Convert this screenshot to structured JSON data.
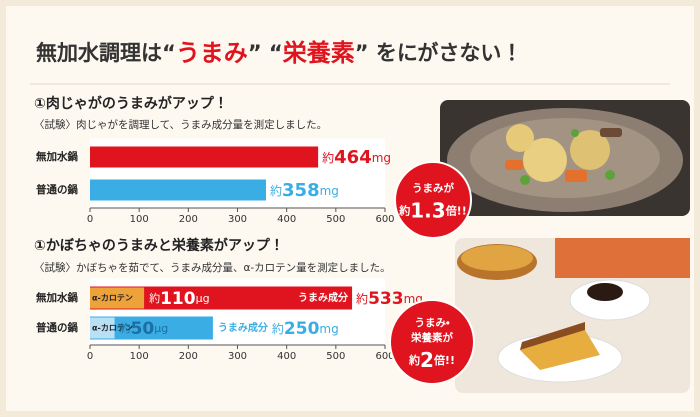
{
  "title": {
    "parts": [
      "無加水調理は“",
      "うまみ",
      "” “",
      "栄養素",
      "” をにがさない！"
    ]
  },
  "chart_data": [
    {
      "type": "bar",
      "title": "①肉じゃがのうまみがアップ！",
      "subtitle": "〈試験〉肉じゃがを調理して、うまみ成分量を測定しました。",
      "categories": [
        "無加水鍋",
        "普通の鍋"
      ],
      "values": [
        464,
        358
      ],
      "value_labels": [
        "約464mg",
        "約358mg"
      ],
      "colors": [
        "#e0141e",
        "#3aaee4"
      ],
      "xlim": [
        0,
        600
      ],
      "xticks": [
        0,
        100,
        200,
        300,
        400,
        500,
        600
      ]
    },
    {
      "type": "overlay-bar",
      "title": "①かぼちゃのうまみと栄養素がアップ！",
      "subtitle": "〈試験〉かぼちゃを茹でて、うまみ成分量、α-カロテン量を測定しました。",
      "categories": [
        "無加水鍋",
        "普通の鍋"
      ],
      "series": [
        {
          "name": "うまみ成分",
          "values": [
            533,
            250
          ],
          "value_labels": [
            "約533mg",
            "約250mg"
          ],
          "colors": [
            "#e0141e",
            "#3aaee4"
          ]
        },
        {
          "name": "α-カロテン",
          "values": [
            110,
            50
          ],
          "value_labels": [
            "約110μg",
            "約50μg"
          ],
          "colors": [
            "#eea23a",
            "#b9e0f4"
          ]
        }
      ],
      "xlim": [
        0,
        600
      ],
      "xticks": [
        0,
        100,
        200,
        300,
        400,
        500,
        600
      ]
    }
  ],
  "badges": [
    {
      "lines": [
        "うまみが",
        "約1.3倍!!"
      ]
    },
    {
      "lines": [
        "うまみ・",
        "栄養素が",
        "約2倍!!"
      ]
    }
  ]
}
